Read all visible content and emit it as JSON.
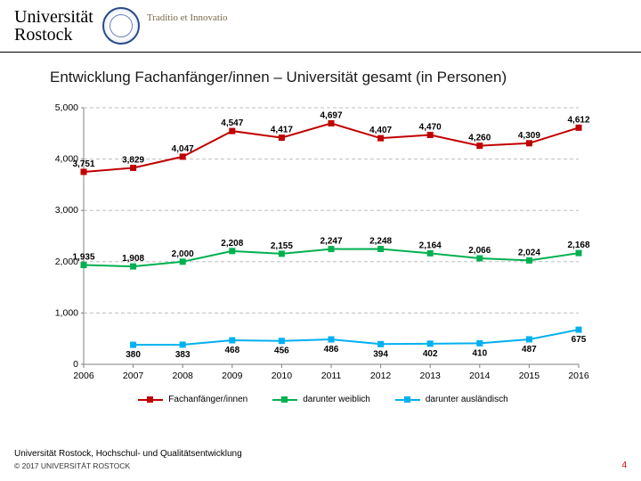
{
  "logo": {
    "line1": "Universität",
    "line2": "Rostock",
    "motto": "Traditio et Innovatio"
  },
  "slide": {
    "title": "Entwicklung Fachanfänger/innen – Universität gesamt (in Personen)",
    "chart": {
      "type": "line",
      "categories": [
        "2006",
        "2007",
        "2008",
        "2009",
        "2010",
        "2011",
        "2012",
        "2013",
        "2014",
        "2015",
        "2016"
      ],
      "ylim": [
        0,
        5000
      ],
      "ytick_step": 1000,
      "ytick_labels": [
        "0",
        "1,000",
        "2,000",
        "3,000",
        "4,000",
        "5,000"
      ],
      "grid_color": "#bfbfbf",
      "axis_color": "#808080",
      "label_fontsize": 10,
      "series": [
        {
          "name": "Fachanfänger/innen",
          "color": "#c00000",
          "marker": "square",
          "values": [
            3751,
            3829,
            4047,
            4547,
            4417,
            4697,
            4407,
            4470,
            4260,
            4309,
            4612
          ],
          "labels": [
            "3,751",
            "3,829",
            "4,047",
            "4,547",
            "4,417",
            "4,697",
            "4,407",
            "4,470",
            "4,260",
            "4,309",
            "4,612"
          ]
        },
        {
          "name": "darunter weiblich",
          "color": "#00b050",
          "marker": "square",
          "values": [
            1935,
            1908,
            2000,
            2208,
            2155,
            2247,
            2248,
            2164,
            2066,
            2024,
            2168
          ],
          "labels": [
            "1,935",
            "1,908",
            "2,000",
            "2,208",
            "2,155",
            "2,247",
            "2,248",
            "2,164",
            "2,066",
            "2,024",
            "2,168"
          ]
        },
        {
          "name": "darunter ausländisch",
          "color": "#00b0f0",
          "marker": "square",
          "values": [
            null,
            380,
            383,
            468,
            456,
            486,
            394,
            402,
            410,
            487,
            675
          ],
          "labels": [
            null,
            "380",
            "383",
            "468",
            "456",
            "486",
            "394",
            "402",
            "410",
            "487",
            "675"
          ]
        }
      ]
    },
    "footer_dept": "Universität Rostock, Hochschul- und Qualitätsentwicklung",
    "copyright": "© 2017  UNIVERSITÄT ROSTOCK",
    "page_number": "4"
  }
}
